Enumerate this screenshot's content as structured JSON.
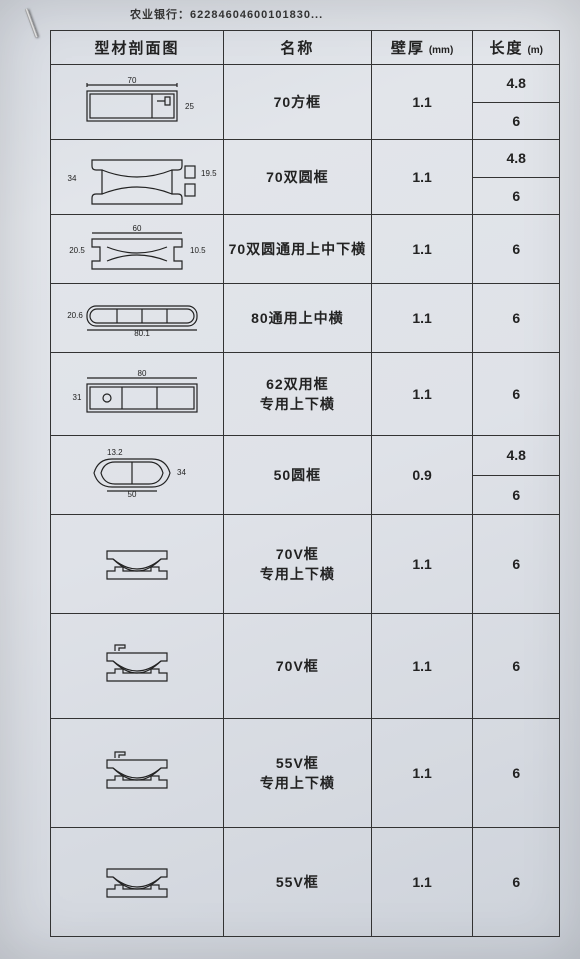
{
  "header": {
    "bank_text": "农业银行：62284604600101830..."
  },
  "columns": {
    "profile": "型材剖面图",
    "name": "名称",
    "thickness": "壁厚",
    "thickness_unit": "(mm)",
    "length": "长度",
    "length_unit": "(m)"
  },
  "rows": [
    {
      "name": "70方框",
      "thickness": "1.1",
      "lengths": [
        "4.8",
        "6"
      ],
      "dim_w": "70",
      "dim_h": "25",
      "shape": "rect2"
    },
    {
      "name": "70双圆框",
      "thickness": "1.1",
      "lengths": [
        "4.8",
        "6"
      ],
      "dim_w": "",
      "dim_h": "34",
      "shape": "dualround"
    },
    {
      "name": "70双圆通用上中下横",
      "thickness": "1.1",
      "lengths": [
        "6"
      ],
      "dim_w": "60",
      "dim_h": "20.5",
      "shape": "dualround_low"
    },
    {
      "name": "80通用上中横",
      "thickness": "1.1",
      "lengths": [
        "6"
      ],
      "dim_w": "80.1",
      "dim_h": "20.6",
      "shape": "flat80"
    },
    {
      "name": "62双用框\n专用上下横",
      "thickness": "1.1",
      "lengths": [
        "6"
      ],
      "dim_w": "80",
      "dim_h": "31",
      "shape": "flat62"
    },
    {
      "name": "50圆框",
      "thickness": "0.9",
      "lengths": [
        "4.8",
        "6"
      ],
      "dim_w": "50",
      "dim_h": "34",
      "shape": "round50"
    },
    {
      "name": "70V框\n专用上下横",
      "thickness": "1.1",
      "lengths": [
        "6"
      ],
      "dim_w": "",
      "dim_h": "",
      "shape": "v70a"
    },
    {
      "name": "70V框",
      "thickness": "1.1",
      "lengths": [
        "6"
      ],
      "dim_w": "",
      "dim_h": "",
      "shape": "v70b"
    },
    {
      "name": "55V框\n专用上下横",
      "thickness": "1.1",
      "lengths": [
        "6"
      ],
      "dim_w": "",
      "dim_h": "",
      "shape": "v55a"
    },
    {
      "name": "55V框",
      "thickness": "1.1",
      "lengths": [
        "6"
      ],
      "dim_w": "",
      "dim_h": "",
      "shape": "v55b"
    }
  ],
  "row_heights": {
    "default_single": 70,
    "default_double": 70,
    "tall": 98
  },
  "styling": {
    "border_color": "#333333",
    "text_color": "#222222",
    "paper_bg": "#dfe2e8"
  }
}
